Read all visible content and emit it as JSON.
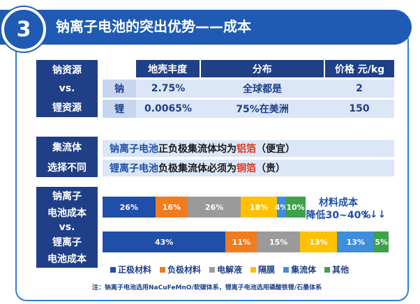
{
  "header": {
    "number": "3",
    "title": "钠离子电池的突出优势——成本"
  },
  "resources": {
    "label": [
      "钠资源",
      "vs.",
      "锂资源"
    ],
    "columns": [
      "地壳丰度",
      "分布",
      "价格 元/kg"
    ],
    "rows": [
      {
        "element": "钠",
        "abundance": "2.75%",
        "distribution": "全球都是",
        "price": "2"
      },
      {
        "element": "锂",
        "abundance": "0.0065%",
        "distribution": "75%在美洲",
        "price": "150"
      }
    ]
  },
  "collector": {
    "label": [
      "集流体",
      "选择不同"
    ],
    "lines": [
      {
        "battery": "钠离子电池",
        "text": "正负极集流体均为",
        "material": "铝箔",
        "note": "（便宜）"
      },
      {
        "battery": "锂离子电池",
        "text": "负极集流体必须为",
        "material": "铜箔",
        "note": "（贵）"
      }
    ]
  },
  "cost": {
    "label": [
      "钠离子",
      "电池成本",
      "vs.",
      "锂离子",
      "电池成本"
    ],
    "note_line1": "材料成本",
    "note_line2": "降低30~40%",
    "arrows": "↓↓↓"
  },
  "colors": {
    "cathode": "#1f4fa8",
    "anode": "#f07c20",
    "electrolyte": "#9a9a9a",
    "separator": "#ffc000",
    "collector": "#3e8edb",
    "other": "#3ea04a"
  },
  "chart_data": {
    "type": "bar",
    "stacked": true,
    "orientation": "horizontal",
    "categories": [
      "钠离子电池成本",
      "锂离子电池成本"
    ],
    "series": [
      {
        "name": "正极材料",
        "values": [
          26,
          43
        ]
      },
      {
        "name": "负极材料",
        "values": [
          16,
          11
        ]
      },
      {
        "name": "电解液",
        "values": [
          26,
          15
        ]
      },
      {
        "name": "隔膜",
        "values": [
          18,
          13
        ]
      },
      {
        "name": "集流体",
        "values": [
          4,
          13
        ]
      },
      {
        "name": "其他",
        "values": [
          10,
          5
        ]
      }
    ],
    "value_labels": [
      [
        "26%",
        "16%",
        "26%",
        "18%",
        "4%",
        "10%"
      ],
      [
        "43%",
        "11%",
        "15%",
        "13%",
        "13%",
        "5%"
      ]
    ],
    "relative_total": [
      0.71,
      1.0
    ],
    "legend_position": "bottom"
  },
  "legend": [
    "正极材料",
    "负极材料",
    "电解液",
    "隔膜",
    "集流体",
    "其他"
  ],
  "footnote": "注：钠离子电池选用NaCuFeMnO/软碳体系，锂离子电池选用磷酸铁锂/石墨体系"
}
